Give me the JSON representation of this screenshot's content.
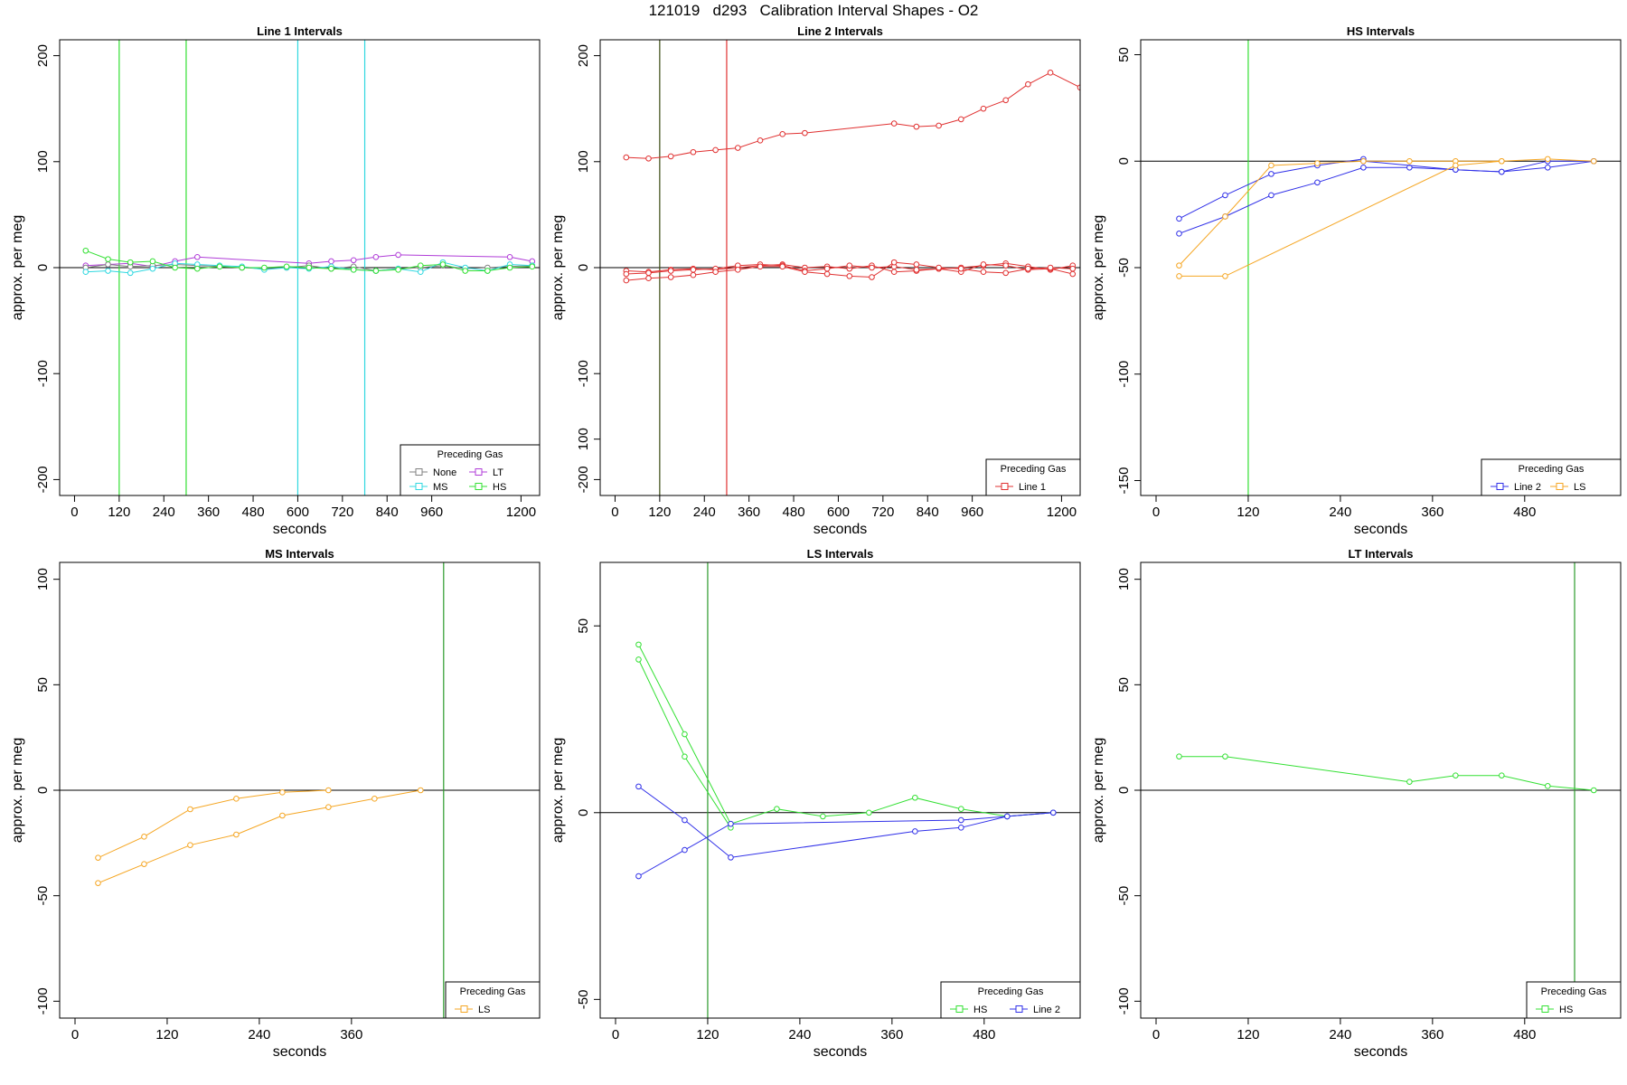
{
  "page": {
    "title": "121019   d293   Calibration Interval Shapes - O2"
  },
  "colors": {
    "None": "#808080",
    "LT": "#b03cd8",
    "MS": "#30d8e0",
    "HS": "#33e033",
    "LS": "#f5a623",
    "Line 1": "#e03030",
    "Line 2": "#3030e8",
    "vline_dark_green": "#2a9a2a",
    "vline_dark": "#3a4a10"
  },
  "chart_data": [
    {
      "type": "line",
      "title": "Line 1 Intervals",
      "xlabel": "seconds",
      "ylabel": "approx. per meg",
      "xlim": [
        -40,
        1250
      ],
      "ylim": [
        -215,
        215
      ],
      "xticks": [
        0,
        120,
        240,
        360,
        480,
        600,
        720,
        840,
        960,
        1200
      ],
      "yticks": [
        -200,
        -100,
        0,
        100,
        200
      ],
      "hline": 0,
      "vlines": [
        {
          "x": 120,
          "color": "HS"
        },
        {
          "x": 300,
          "color": "HS"
        },
        {
          "x": 600,
          "color": "MS"
        },
        {
          "x": 780,
          "color": "MS"
        }
      ],
      "legend": {
        "title": "Preceding Gas",
        "position": "bottom-right",
        "entries": [
          "None",
          "LT",
          "MS",
          "HS"
        ],
        "columns": 2
      },
      "series": [
        {
          "name": "LT",
          "x": [
            30,
            90,
            150,
            210,
            270,
            330,
            630,
            690,
            750,
            810,
            870,
            1170,
            1230
          ],
          "y": [
            2,
            3,
            4,
            1,
            6,
            10,
            4,
            6,
            7,
            10,
            12,
            10,
            6
          ]
        },
        {
          "name": "None",
          "x": [
            30,
            90,
            150,
            210,
            270,
            330,
            390,
            450,
            510,
            570,
            630,
            690,
            750,
            810,
            870,
            930,
            990,
            1050,
            1110,
            1170,
            1230
          ],
          "y": [
            0,
            3,
            1,
            2,
            3,
            2,
            1,
            0,
            -1,
            0,
            2,
            -1,
            1,
            -3,
            -1,
            0,
            2,
            -1,
            0,
            1,
            2
          ]
        },
        {
          "name": "MS",
          "x": [
            30,
            90,
            150,
            210,
            270,
            330,
            390,
            450,
            510,
            570,
            630,
            690,
            750,
            810,
            870,
            930,
            990,
            1050,
            1110,
            1170,
            1230
          ],
          "y": [
            -4,
            -3,
            -5,
            -1,
            4,
            3,
            2,
            1,
            -2,
            0,
            -1,
            1,
            -2,
            -3,
            -1,
            -4,
            5,
            0,
            -3,
            3,
            2
          ]
        },
        {
          "name": "HS",
          "x": [
            30,
            90,
            150,
            210,
            270,
            330,
            390,
            450,
            510,
            570,
            630,
            690,
            750,
            810,
            870,
            930,
            990,
            1050,
            1110,
            1170,
            1230
          ],
          "y": [
            16,
            8,
            5,
            6,
            0,
            -1,
            1,
            0,
            0,
            1,
            0,
            -1,
            -2,
            -3,
            -2,
            2,
            3,
            -3,
            -3,
            0,
            1
          ]
        }
      ]
    },
    {
      "type": "line",
      "title": "Line 2 Intervals",
      "xlabel": "seconds",
      "ylabel": "approx. per meg",
      "xlim": [
        -40,
        1250
      ],
      "ylim": [
        -215,
        215
      ],
      "xticks": [
        0,
        120,
        240,
        360,
        480,
        600,
        720,
        840,
        960,
        1200
      ],
      "yticks": [
        -200,
        -100,
        0,
        100,
        200
      ],
      "hline": 0,
      "vlines": [
        {
          "x": 120,
          "color": "vline_dark"
        },
        {
          "x": 300,
          "color": "Line 1"
        }
      ],
      "legend": {
        "title": "Preceding Gas",
        "position": "bottom-right",
        "entries": [
          "Line 1"
        ],
        "columns": 1
      },
      "series": [
        {
          "name": "Line 1",
          "x": [
            30,
            90,
            150,
            210,
            270,
            330,
            390,
            450,
            510,
            750,
            810,
            870,
            930,
            990,
            1050,
            1110,
            1170,
            1250
          ],
          "y": [
            104,
            103,
            105,
            109,
            111,
            113,
            120,
            126,
            127,
            136,
            133,
            134,
            140,
            150,
            158,
            173,
            184,
            170
          ]
        },
        {
          "name": "Line 1",
          "x": [
            30,
            90,
            150,
            210,
            270,
            330,
            390,
            450,
            510,
            570,
            630,
            690,
            750,
            810,
            870,
            930,
            990,
            1050,
            1110,
            1170,
            1230
          ],
          "y": [
            -3,
            -4,
            -2,
            -1,
            -2,
            0,
            2,
            3,
            0,
            1,
            -1,
            2,
            -4,
            -3,
            -1,
            0,
            2,
            4,
            1,
            -2,
            2
          ]
        },
        {
          "name": "Line 1",
          "x": [
            30,
            90,
            150,
            210,
            270,
            330,
            390,
            450,
            510,
            570,
            630,
            690,
            750,
            810,
            870,
            930,
            990,
            1050,
            1110,
            1170,
            1230
          ],
          "y": [
            -6,
            -5,
            -3,
            -2,
            -1,
            2,
            3,
            2,
            -3,
            -1,
            2,
            0,
            1,
            -2,
            -1,
            -4,
            3,
            2,
            -2,
            -1,
            -6
          ]
        },
        {
          "name": "Line 1",
          "x": [
            30,
            90,
            150,
            210,
            270,
            330,
            390,
            450,
            510,
            570,
            630,
            690,
            750,
            810,
            870,
            930,
            990,
            1050,
            1110,
            1170,
            1230
          ],
          "y": [
            -12,
            -10,
            -9,
            -7,
            -4,
            -2,
            1,
            1,
            -4,
            -6,
            -8,
            -9,
            5,
            3,
            0,
            -1,
            -4,
            -5,
            -1,
            0,
            -1
          ]
        }
      ]
    },
    {
      "type": "line",
      "title": "HS Intervals",
      "xlabel": "seconds",
      "ylabel": "approx. per meg",
      "xlim": [
        -20,
        605
      ],
      "ylim": [
        -157,
        57
      ],
      "xticks": [
        0,
        120,
        240,
        360,
        480
      ],
      "yticks": [
        -150,
        -100,
        -50,
        0,
        50
      ],
      "hline": 0,
      "vlines": [
        {
          "x": 120,
          "color": "HS"
        }
      ],
      "legend": {
        "title": "Preceding Gas",
        "position": "bottom-right",
        "entries": [
          "Line 2",
          "LS"
        ],
        "columns": 2
      },
      "series": [
        {
          "name": "Line 2",
          "x": [
            30,
            90,
            150,
            210,
            270
          ],
          "y": [
            -27,
            -16,
            -6,
            -2,
            1
          ]
        },
        {
          "name": "Line 2",
          "x": [
            30,
            90,
            150,
            210,
            270,
            330,
            390,
            450,
            510,
            570
          ],
          "y": [
            -34,
            -26,
            -16,
            -10,
            -3,
            -3,
            -4,
            -5,
            -3,
            0
          ]
        },
        {
          "name": "Line 2",
          "x": [
            270,
            390,
            450,
            510,
            570
          ],
          "y": [
            0,
            -4,
            -5,
            0,
            0
          ]
        },
        {
          "name": "LS",
          "x": [
            30,
            90,
            150,
            210,
            270,
            330,
            390,
            450,
            510,
            570
          ],
          "y": [
            -49,
            -26,
            -2,
            -1,
            0,
            0,
            0,
            0,
            1,
            0
          ]
        },
        {
          "name": "LS",
          "x": [
            30,
            90,
            390,
            450
          ],
          "y": [
            -54,
            -54,
            -2,
            0
          ]
        }
      ]
    },
    {
      "type": "line",
      "title": "MS Intervals",
      "xlabel": "seconds",
      "ylabel": "approx. per meg",
      "xlim": [
        -20,
        605
      ],
      "ylim": [
        -108,
        108
      ],
      "xticks": [
        0,
        120,
        240,
        360
      ],
      "yticks": [
        -100,
        -50,
        0,
        50,
        100
      ],
      "hline": 0,
      "vlines": [
        {
          "x": 480,
          "color": "vline_dark_green"
        }
      ],
      "legend": {
        "title": "Preceding Gas",
        "position": "bottom-right",
        "entries": [
          "LS"
        ],
        "columns": 1
      },
      "series": [
        {
          "name": "LS",
          "x": [
            30,
            90,
            150,
            210,
            270,
            330,
            390,
            450
          ],
          "y": [
            -32,
            -22,
            -9,
            -4,
            -1,
            0,
            null,
            null
          ]
        },
        {
          "name": "LS",
          "x": [
            30,
            90,
            150,
            210,
            270,
            330,
            390,
            450
          ],
          "y": [
            -44,
            -35,
            -26,
            -21,
            -12,
            -8,
            -4,
            0
          ]
        }
      ]
    },
    {
      "type": "line",
      "title": "LS Intervals",
      "xlabel": "seconds",
      "ylabel": "approx. per meg",
      "xlim": [
        -20,
        605
      ],
      "ylim": [
        -55,
        67
      ],
      "xticks": [
        0,
        120,
        240,
        360,
        480
      ],
      "yticks": [
        -50,
        0,
        50,
        100
      ],
      "hline": 0,
      "vlines": [
        {
          "x": 120,
          "color": "vline_dark_green"
        }
      ],
      "legend": {
        "title": "Preceding Gas",
        "position": "bottom-right",
        "entries": [
          "HS",
          "Line 2"
        ],
        "columns": 2
      },
      "series": [
        {
          "name": "HS",
          "x": [
            30,
            90,
            150,
            210,
            270,
            330,
            390,
            450,
            510,
            570
          ],
          "y": [
            45,
            21,
            -3,
            1,
            -1,
            0,
            4,
            1,
            -1,
            0
          ]
        },
        {
          "name": "HS",
          "x": [
            30,
            90,
            150
          ],
          "y": [
            41,
            15,
            -4
          ]
        },
        {
          "name": "Line 2",
          "x": [
            30,
            90,
            150,
            390,
            450,
            510,
            570
          ],
          "y": [
            7,
            -2,
            -12,
            -5,
            -4,
            -1,
            0
          ]
        },
        {
          "name": "Line 2",
          "x": [
            30,
            90,
            150,
            450,
            510,
            570
          ],
          "y": [
            -17,
            -10,
            -3,
            -2,
            -1,
            0
          ]
        }
      ]
    },
    {
      "type": "line",
      "title": "LT Intervals",
      "xlabel": "seconds",
      "ylabel": "approx. per meg",
      "xlim": [
        -20,
        605
      ],
      "ylim": [
        -108,
        108
      ],
      "xticks": [
        0,
        120,
        240,
        360,
        480
      ],
      "yticks": [
        -100,
        -50,
        0,
        50,
        100
      ],
      "hline": 0,
      "vlines": [
        {
          "x": 545,
          "color": "vline_dark_green"
        }
      ],
      "legend": {
        "title": "Preceding Gas",
        "position": "bottom-right",
        "entries": [
          "HS"
        ],
        "columns": 1
      },
      "series": [
        {
          "name": "HS",
          "x": [
            30,
            90,
            330,
            390,
            450,
            510,
            570
          ],
          "y": [
            16,
            16,
            4,
            7,
            7,
            2,
            0
          ]
        }
      ]
    }
  ]
}
